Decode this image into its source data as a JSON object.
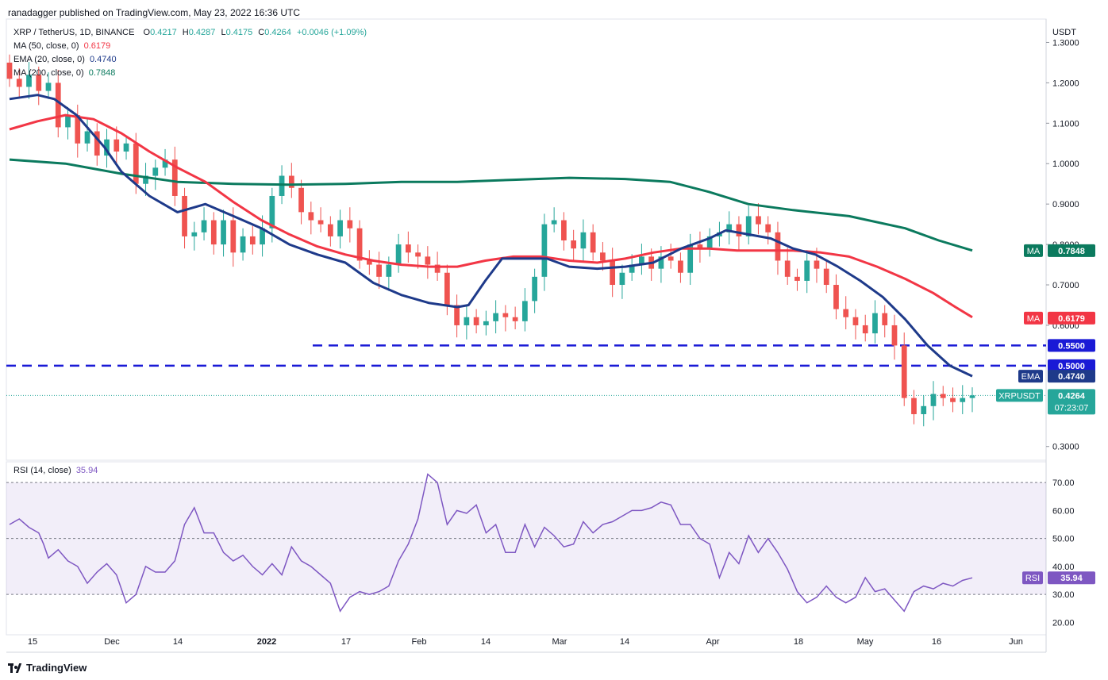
{
  "header": {
    "publisher": "ranadagger published on TradingView.com, May 23, 2022 16:36 UTC"
  },
  "symbol": {
    "name": "XRP / TetherUS, 1D, BINANCE",
    "o_label": "O",
    "o": "0.4217",
    "h_label": "H",
    "h": "0.4287",
    "l_label": "L",
    "l": "0.4175",
    "c_label": "C",
    "c": "0.4264",
    "change": "+0.0046 (+1.09%)"
  },
  "indicators": {
    "ma50": {
      "label": "MA (50, close, 0)",
      "value": "0.6179",
      "color": "#f23645"
    },
    "ema20": {
      "label": "EMA (20, close, 0)",
      "value": "0.4740",
      "color": "#1e3a8a"
    },
    "ma200": {
      "label": "MA (200, close, 0)",
      "value": "0.7848",
      "color": "#0b7a5e"
    },
    "rsi": {
      "label": "RSI (14, close)",
      "value": "35.94",
      "color": "#7e57c2"
    }
  },
  "footer": {
    "brand": "TradingView"
  },
  "colors": {
    "up": "#26a69a",
    "down": "#ef5350",
    "line": "#1a1ad6",
    "axis": "#131722"
  },
  "chart_data": {
    "type": "candlestick",
    "title": "XRP / TetherUS, 1D, BINANCE",
    "currency": "USDT",
    "price_axis": {
      "ticks": [
        "1.3000",
        "1.2000",
        "1.1000",
        "1.0000",
        "0.9000",
        "0.8000",
        "0.7000",
        "0.6000",
        "0.3000"
      ],
      "min": 0.27,
      "max": 1.35
    },
    "rsi_axis": {
      "ticks": [
        "70.00",
        "60.00",
        "50.00",
        "40.00",
        "30.00",
        "20.00"
      ],
      "min": 17,
      "max": 76,
      "band": [
        30,
        70
      ]
    },
    "x_labels": [
      "15",
      "Dec",
      "14",
      "2022",
      "17",
      "Feb",
      "14",
      "Mar",
      "14",
      "Apr",
      "18",
      "May",
      "16",
      "Jun"
    ],
    "horizontal_levels": [
      {
        "label": "0.5500",
        "value": 0.55,
        "start_label": "Jan 09"
      },
      {
        "label": "0.5000",
        "value": 0.5,
        "start_label": "Nov 10"
      }
    ],
    "axis_tags": [
      {
        "name": "MA",
        "value": "0.7848",
        "price": 0.7848,
        "color": "#0b7a5e"
      },
      {
        "name": "MA",
        "value": "0.6179",
        "price": 0.6179,
        "color": "#f23645"
      },
      {
        "name": "",
        "value": "0.5500",
        "price": 0.55,
        "color": "#1a1ad6"
      },
      {
        "name": "",
        "value": "0.5000",
        "price": 0.5,
        "color": "#1a1ad6"
      },
      {
        "name": "EMA",
        "value": "0.4740",
        "price": 0.474,
        "color": "#1e3a8a"
      },
      {
        "name": "XRPUSDT",
        "value": "0.4264",
        "countdown": "07:23:07",
        "price": 0.4264,
        "color": "#26a69a"
      }
    ],
    "rsi_tag": {
      "name": "RSI",
      "value": "35.94",
      "rsi": 35.94
    },
    "ma200_points": [
      [
        0,
        1.01
      ],
      [
        10,
        1.0
      ],
      [
        20,
        0.975
      ],
      [
        30,
        0.955
      ],
      [
        40,
        0.95
      ],
      [
        50,
        0.948
      ],
      [
        60,
        0.95
      ],
      [
        70,
        0.955
      ],
      [
        80,
        0.955
      ],
      [
        90,
        0.96
      ],
      [
        100,
        0.965
      ],
      [
        110,
        0.962
      ],
      [
        118,
        0.955
      ],
      [
        125,
        0.93
      ],
      [
        132,
        0.9
      ],
      [
        140,
        0.885
      ],
      [
        150,
        0.87
      ],
      [
        160,
        0.84
      ],
      [
        166,
        0.81
      ],
      [
        172,
        0.785
      ]
    ],
    "ma50_points": [
      [
        0,
        1.085
      ],
      [
        5,
        1.105
      ],
      [
        10,
        1.12
      ],
      [
        15,
        1.11
      ],
      [
        20,
        1.075
      ],
      [
        25,
        1.03
      ],
      [
        30,
        0.99
      ],
      [
        35,
        0.955
      ],
      [
        40,
        0.905
      ],
      [
        45,
        0.86
      ],
      [
        50,
        0.825
      ],
      [
        55,
        0.795
      ],
      [
        60,
        0.775
      ],
      [
        65,
        0.76
      ],
      [
        70,
        0.75
      ],
      [
        75,
        0.745
      ],
      [
        80,
        0.745
      ],
      [
        85,
        0.76
      ],
      [
        90,
        0.77
      ],
      [
        95,
        0.77
      ],
      [
        100,
        0.76
      ],
      [
        105,
        0.755
      ],
      [
        110,
        0.765
      ],
      [
        115,
        0.78
      ],
      [
        120,
        0.79
      ],
      [
        125,
        0.79
      ],
      [
        130,
        0.785
      ],
      [
        135,
        0.785
      ],
      [
        140,
        0.785
      ],
      [
        145,
        0.78
      ],
      [
        150,
        0.77
      ],
      [
        155,
        0.745
      ],
      [
        160,
        0.715
      ],
      [
        165,
        0.68
      ],
      [
        169,
        0.645
      ],
      [
        172,
        0.62
      ]
    ],
    "ema20_points": [
      [
        0,
        1.16
      ],
      [
        5,
        1.17
      ],
      [
        8,
        1.16
      ],
      [
        12,
        1.12
      ],
      [
        17,
        1.04
      ],
      [
        20,
        0.98
      ],
      [
        25,
        0.92
      ],
      [
        30,
        0.88
      ],
      [
        35,
        0.9
      ],
      [
        40,
        0.87
      ],
      [
        45,
        0.84
      ],
      [
        50,
        0.8
      ],
      [
        55,
        0.775
      ],
      [
        60,
        0.755
      ],
      [
        65,
        0.705
      ],
      [
        70,
        0.675
      ],
      [
        75,
        0.655
      ],
      [
        80,
        0.645
      ],
      [
        82,
        0.65
      ],
      [
        85,
        0.71
      ],
      [
        88,
        0.765
      ],
      [
        92,
        0.765
      ],
      [
        96,
        0.765
      ],
      [
        100,
        0.745
      ],
      [
        105,
        0.74
      ],
      [
        110,
        0.745
      ],
      [
        115,
        0.755
      ],
      [
        120,
        0.79
      ],
      [
        125,
        0.815
      ],
      [
        128,
        0.835
      ],
      [
        132,
        0.825
      ],
      [
        136,
        0.815
      ],
      [
        140,
        0.79
      ],
      [
        144,
        0.775
      ],
      [
        148,
        0.745
      ],
      [
        152,
        0.71
      ],
      [
        156,
        0.67
      ],
      [
        160,
        0.615
      ],
      [
        164,
        0.55
      ],
      [
        168,
        0.5
      ],
      [
        172,
        0.474
      ]
    ],
    "rsi_points": [
      [
        0,
        55
      ],
      [
        2,
        57
      ],
      [
        4,
        54
      ],
      [
        6,
        52
      ],
      [
        7,
        48
      ],
      [
        8,
        43
      ],
      [
        10,
        46
      ],
      [
        12,
        42
      ],
      [
        14,
        40
      ],
      [
        16,
        34
      ],
      [
        18,
        38
      ],
      [
        20,
        41
      ],
      [
        22,
        37
      ],
      [
        24,
        27
      ],
      [
        26,
        30
      ],
      [
        28,
        40
      ],
      [
        30,
        38
      ],
      [
        32,
        38
      ],
      [
        34,
        42
      ],
      [
        36,
        55
      ],
      [
        38,
        61
      ],
      [
        40,
        52
      ],
      [
        42,
        52
      ],
      [
        44,
        45
      ],
      [
        46,
        42
      ],
      [
        48,
        44
      ],
      [
        50,
        40
      ],
      [
        52,
        37
      ],
      [
        54,
        41
      ],
      [
        56,
        37
      ],
      [
        58,
        47
      ],
      [
        60,
        42
      ],
      [
        62,
        40
      ],
      [
        64,
        37
      ],
      [
        66,
        34
      ],
      [
        68,
        24
      ],
      [
        70,
        29
      ],
      [
        72,
        31
      ],
      [
        74,
        30
      ],
      [
        76,
        31
      ],
      [
        78,
        33
      ],
      [
        80,
        42
      ],
      [
        82,
        48
      ],
      [
        84,
        57
      ],
      [
        86,
        73
      ],
      [
        88,
        70
      ],
      [
        90,
        55
      ],
      [
        92,
        60
      ],
      [
        94,
        59
      ],
      [
        96,
        62
      ],
      [
        98,
        52
      ],
      [
        100,
        55
      ],
      [
        102,
        45
      ],
      [
        104,
        45
      ],
      [
        106,
        55
      ],
      [
        108,
        47
      ],
      [
        110,
        54
      ],
      [
        112,
        51
      ],
      [
        114,
        47
      ],
      [
        116,
        48
      ],
      [
        118,
        56
      ],
      [
        120,
        52
      ],
      [
        122,
        55
      ],
      [
        124,
        56
      ],
      [
        126,
        58
      ],
      [
        128,
        60
      ],
      [
        130,
        60
      ],
      [
        132,
        61
      ],
      [
        134,
        63
      ],
      [
        136,
        62
      ],
      [
        138,
        55
      ],
      [
        140,
        55
      ],
      [
        142,
        50
      ],
      [
        144,
        48
      ],
      [
        146,
        36
      ],
      [
        148,
        45
      ],
      [
        150,
        41
      ],
      [
        152,
        51
      ],
      [
        154,
        45
      ],
      [
        156,
        50
      ],
      [
        158,
        45
      ],
      [
        160,
        39
      ],
      [
        162,
        31
      ],
      [
        164,
        27
      ],
      [
        166,
        29
      ],
      [
        168,
        33
      ],
      [
        170,
        29
      ],
      [
        172,
        27
      ],
      [
        174,
        29
      ],
      [
        176,
        36
      ],
      [
        178,
        31
      ],
      [
        180,
        32
      ],
      [
        182,
        28
      ],
      [
        184,
        24
      ],
      [
        186,
        31
      ],
      [
        188,
        33
      ],
      [
        190,
        32
      ],
      [
        192,
        34
      ],
      [
        194,
        33
      ],
      [
        196,
        35
      ],
      [
        198,
        35.94
      ]
    ],
    "candles": [
      {
        "label": "xrp daily candles, Nov 10 2021 - May 23 2022",
        "bars": [
          [
            1.25,
            1.21
          ],
          [
            1.21,
            1.19
          ],
          [
            1.19,
            1.22
          ],
          [
            1.22,
            1.18
          ],
          [
            1.18,
            1.2
          ],
          [
            1.2,
            1.09
          ],
          [
            1.09,
            1.12
          ],
          [
            1.12,
            1.05
          ],
          [
            1.05,
            1.08
          ],
          [
            1.08,
            1.02
          ],
          [
            1.02,
            1.06
          ],
          [
            1.06,
            1.03
          ],
          [
            1.03,
            1.05
          ],
          [
            1.05,
            0.95
          ],
          [
            0.95,
            0.97
          ],
          [
            0.97,
            0.99
          ],
          [
            0.99,
            1.01
          ],
          [
            1.01,
            0.92
          ],
          [
            0.92,
            0.82
          ],
          [
            0.82,
            0.83
          ],
          [
            0.83,
            0.86
          ],
          [
            0.86,
            0.8
          ],
          [
            0.8,
            0.86
          ],
          [
            0.86,
            0.78
          ],
          [
            0.78,
            0.82
          ],
          [
            0.82,
            0.8
          ],
          [
            0.8,
            0.84
          ],
          [
            0.84,
            0.92
          ],
          [
            0.92,
            0.97
          ],
          [
            0.97,
            0.94
          ],
          [
            0.94,
            0.88
          ],
          [
            0.88,
            0.86
          ],
          [
            0.86,
            0.85
          ],
          [
            0.85,
            0.82
          ],
          [
            0.82,
            0.86
          ],
          [
            0.86,
            0.84
          ],
          [
            0.84,
            0.76
          ],
          [
            0.76,
            0.75
          ],
          [
            0.75,
            0.72
          ],
          [
            0.72,
            0.75
          ],
          [
            0.75,
            0.8
          ],
          [
            0.8,
            0.78
          ],
          [
            0.78,
            0.77
          ],
          [
            0.77,
            0.75
          ],
          [
            0.75,
            0.73
          ],
          [
            0.73,
            0.65
          ],
          [
            0.65,
            0.6
          ],
          [
            0.6,
            0.62
          ],
          [
            0.62,
            0.6
          ],
          [
            0.6,
            0.61
          ],
          [
            0.61,
            0.63
          ],
          [
            0.63,
            0.62
          ],
          [
            0.62,
            0.61
          ],
          [
            0.61,
            0.66
          ],
          [
            0.66,
            0.72
          ],
          [
            0.72,
            0.85
          ],
          [
            0.85,
            0.86
          ],
          [
            0.86,
            0.81
          ],
          [
            0.81,
            0.79
          ],
          [
            0.79,
            0.83
          ],
          [
            0.83,
            0.78
          ],
          [
            0.78,
            0.76
          ],
          [
            0.76,
            0.7
          ],
          [
            0.7,
            0.73
          ],
          [
            0.73,
            0.75
          ],
          [
            0.75,
            0.77
          ],
          [
            0.77,
            0.74
          ],
          [
            0.74,
            0.77
          ],
          [
            0.77,
            0.76
          ],
          [
            0.76,
            0.73
          ],
          [
            0.73,
            0.8
          ],
          [
            0.8,
            0.79
          ],
          [
            0.79,
            0.82
          ],
          [
            0.82,
            0.83
          ],
          [
            0.83,
            0.85
          ],
          [
            0.85,
            0.82
          ],
          [
            0.82,
            0.87
          ],
          [
            0.87,
            0.85
          ],
          [
            0.85,
            0.83
          ],
          [
            0.83,
            0.76
          ],
          [
            0.76,
            0.72
          ],
          [
            0.72,
            0.71
          ],
          [
            0.71,
            0.76
          ],
          [
            0.76,
            0.74
          ],
          [
            0.74,
            0.7
          ],
          [
            0.7,
            0.64
          ],
          [
            0.64,
            0.62
          ],
          [
            0.62,
            0.6
          ],
          [
            0.6,
            0.58
          ],
          [
            0.58,
            0.63
          ],
          [
            0.63,
            0.6
          ],
          [
            0.6,
            0.55
          ],
          [
            0.55,
            0.42
          ],
          [
            0.42,
            0.38
          ],
          [
            0.38,
            0.4
          ],
          [
            0.4,
            0.43
          ],
          [
            0.43,
            0.42
          ],
          [
            0.42,
            0.41
          ],
          [
            0.41,
            0.42
          ],
          [
            0.42,
            0.4264
          ]
        ]
      }
    ]
  }
}
